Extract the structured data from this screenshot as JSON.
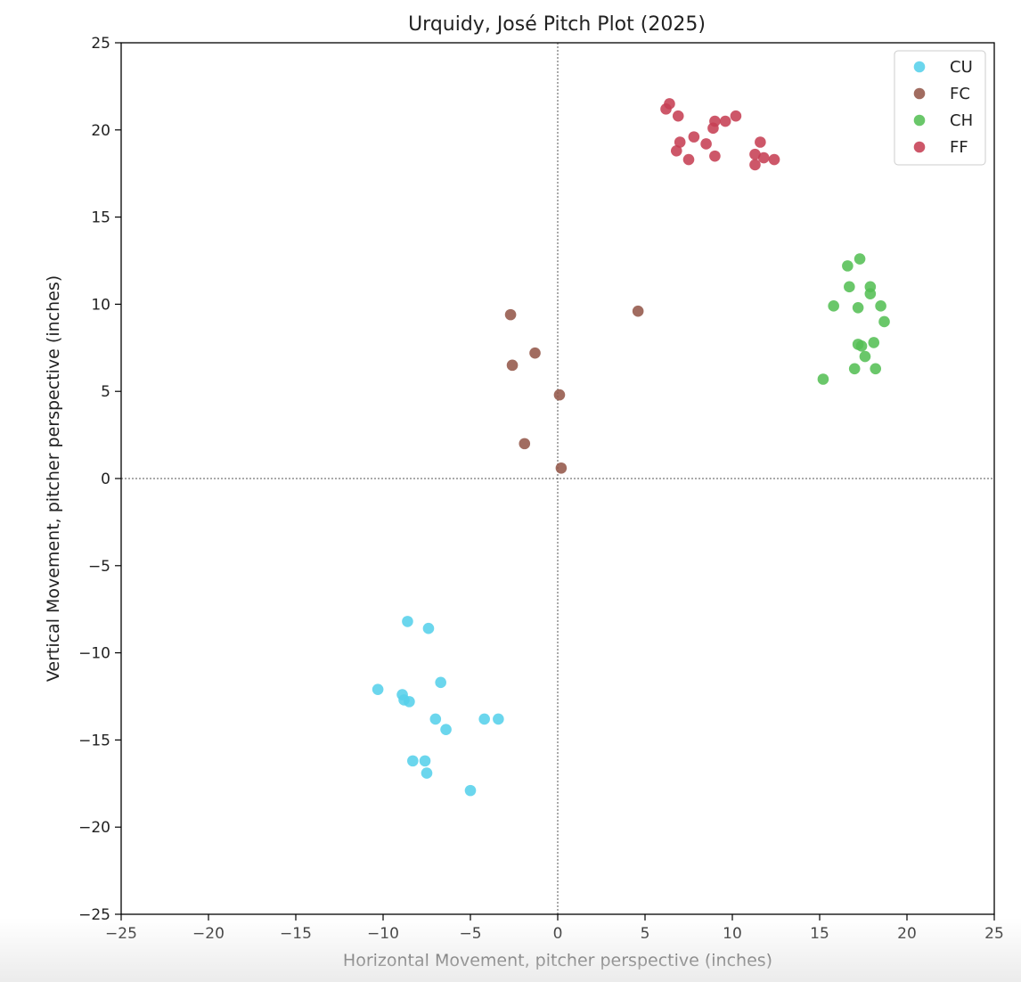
{
  "chart_data": {
    "type": "scatter",
    "title": "Urquidy, José Pitch Plot (2025)",
    "xlabel": "Horizontal Movement, pitcher perspective (inches)",
    "ylabel": "Vertical Movement, pitcher perspective (inches)",
    "xlim": [
      -25,
      25
    ],
    "ylim": [
      -25,
      25
    ],
    "xticks": [
      -25,
      -20,
      -15,
      -10,
      -5,
      0,
      5,
      10,
      15,
      20,
      25
    ],
    "yticks": [
      -25,
      -20,
      -15,
      -10,
      -5,
      0,
      5,
      10,
      15,
      20,
      25
    ],
    "xtick_labels": [
      "−25",
      "−20",
      "−15",
      "−10",
      "−5",
      "0",
      "5",
      "10",
      "15",
      "20",
      "25"
    ],
    "ytick_labels": [
      "−25",
      "−20",
      "−15",
      "−10",
      "−5",
      "0",
      "5",
      "10",
      "15",
      "20",
      "25"
    ],
    "reference_lines": {
      "x": 0,
      "y": 0
    },
    "legend_position": "top-right",
    "grid": false,
    "series": [
      {
        "name": "CU",
        "color": "#56d0ea",
        "points": [
          [
            -8.6,
            -8.2
          ],
          [
            -7.4,
            -8.6
          ],
          [
            -10.3,
            -12.1
          ],
          [
            -8.9,
            -12.4
          ],
          [
            -8.8,
            -12.7
          ],
          [
            -8.5,
            -12.8
          ],
          [
            -6.7,
            -11.7
          ],
          [
            -7.0,
            -13.8
          ],
          [
            -6.4,
            -14.4
          ],
          [
            -4.2,
            -13.8
          ],
          [
            -3.4,
            -13.8
          ],
          [
            -8.3,
            -16.2
          ],
          [
            -7.6,
            -16.2
          ],
          [
            -7.5,
            -16.9
          ],
          [
            -5.0,
            -17.9
          ]
        ]
      },
      {
        "name": "FC",
        "color": "#94584a",
        "points": [
          [
            -2.7,
            9.4
          ],
          [
            -2.6,
            6.5
          ],
          [
            -1.3,
            7.2
          ],
          [
            0.1,
            4.8
          ],
          [
            -1.9,
            2.0
          ],
          [
            0.2,
            0.6
          ],
          [
            4.6,
            9.6
          ]
        ]
      },
      {
        "name": "CH",
        "color": "#55bf55",
        "points": [
          [
            16.6,
            12.2
          ],
          [
            17.3,
            12.6
          ],
          [
            16.7,
            11.0
          ],
          [
            17.9,
            11.0
          ],
          [
            17.9,
            10.6
          ],
          [
            15.8,
            9.9
          ],
          [
            17.2,
            9.8
          ],
          [
            18.5,
            9.9
          ],
          [
            18.7,
            9.0
          ],
          [
            17.2,
            7.7
          ],
          [
            17.4,
            7.6
          ],
          [
            18.1,
            7.8
          ],
          [
            17.6,
            7.0
          ],
          [
            17.0,
            6.3
          ],
          [
            18.2,
            6.3
          ],
          [
            15.2,
            5.7
          ]
        ]
      },
      {
        "name": "FF",
        "color": "#c64054",
        "points": [
          [
            6.4,
            21.5
          ],
          [
            6.2,
            21.2
          ],
          [
            6.9,
            20.8
          ],
          [
            9.0,
            20.5
          ],
          [
            9.6,
            20.5
          ],
          [
            10.2,
            20.8
          ],
          [
            8.9,
            20.1
          ],
          [
            7.0,
            19.3
          ],
          [
            7.8,
            19.6
          ],
          [
            8.5,
            19.2
          ],
          [
            6.8,
            18.8
          ],
          [
            11.6,
            19.3
          ],
          [
            7.5,
            18.3
          ],
          [
            9.0,
            18.5
          ],
          [
            11.3,
            18.6
          ],
          [
            11.8,
            18.4
          ],
          [
            12.4,
            18.3
          ],
          [
            11.3,
            18.0
          ]
        ]
      }
    ]
  }
}
